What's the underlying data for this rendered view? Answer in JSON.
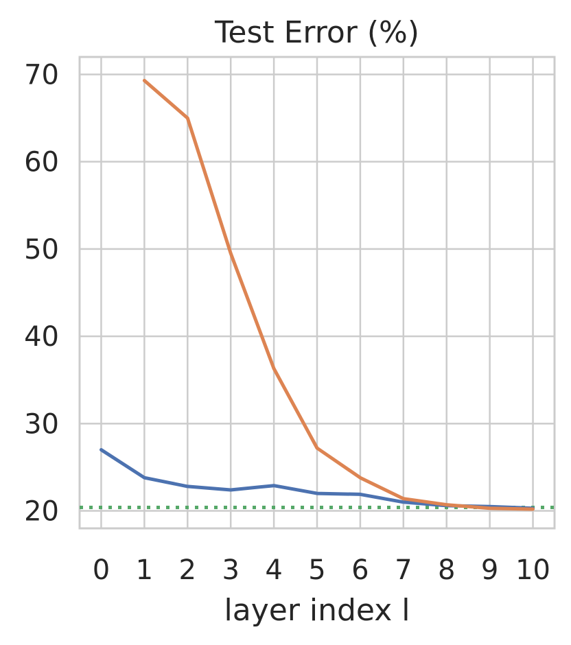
{
  "chart_data": {
    "type": "line",
    "title": "Test Error (%)",
    "xlabel": "layer index l",
    "ylabel": "",
    "x": [
      0,
      1,
      2,
      3,
      4,
      5,
      6,
      7,
      8,
      9,
      10
    ],
    "xlim": [
      -0.5,
      10.5
    ],
    "ylim": [
      18,
      72
    ],
    "xticks": [
      0,
      1,
      2,
      3,
      4,
      5,
      6,
      7,
      8,
      9,
      10
    ],
    "yticks": [
      20,
      30,
      40,
      50,
      60,
      70
    ],
    "grid": true,
    "series": [
      {
        "color": "#4c72b0",
        "values": [
          27.0,
          23.8,
          22.8,
          22.4,
          22.9,
          22.0,
          21.9,
          21.0,
          20.6,
          20.5,
          20.3
        ]
      },
      {
        "color": "#dd8452",
        "values": [
          null,
          69.3,
          65.0,
          49.5,
          36.3,
          27.2,
          23.8,
          21.4,
          20.7,
          20.3,
          20.2
        ]
      }
    ],
    "reference_lines": [
      {
        "color": "#55a868",
        "style": "dotted",
        "y": 20.4
      }
    ]
  }
}
